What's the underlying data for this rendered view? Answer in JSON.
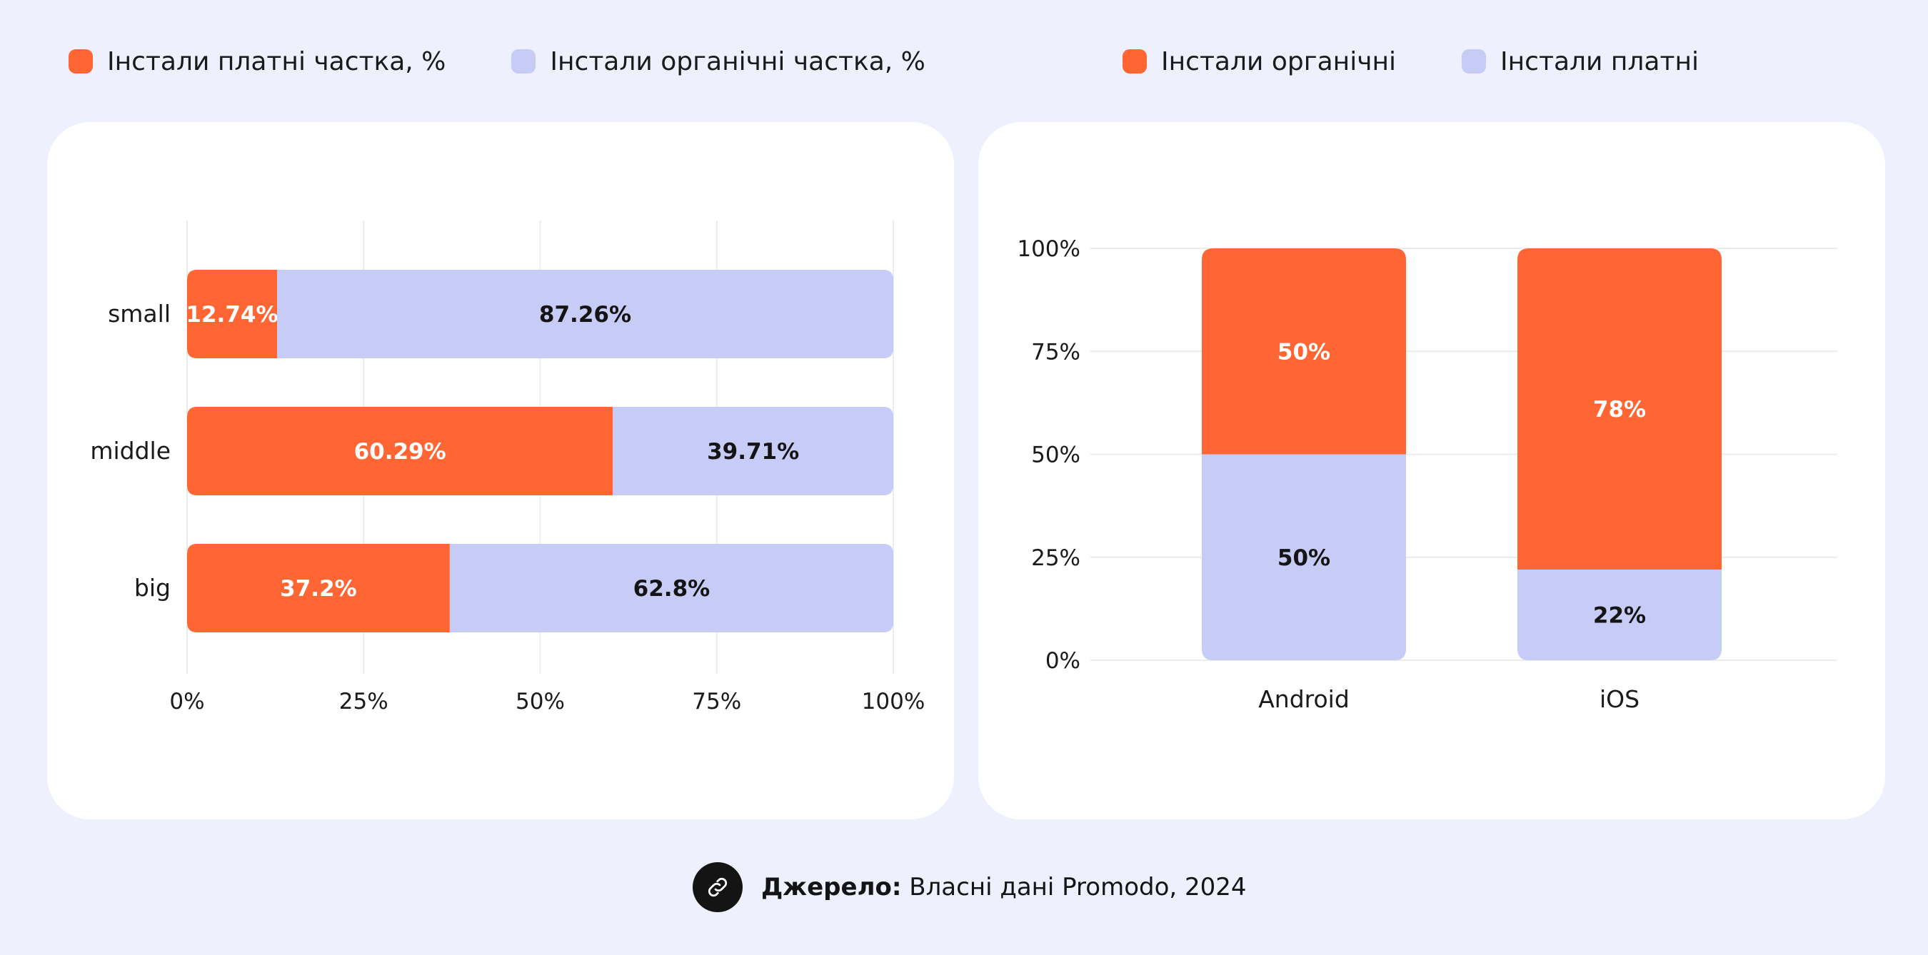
{
  "legends": {
    "left": [
      {
        "label": "Інстали платні частка, %",
        "color": "#FF6633"
      },
      {
        "label": "Інстали органічні частка, %",
        "color": "#C7CCF7"
      }
    ],
    "right": [
      {
        "label": "Інстали органічні",
        "color": "#FF6633"
      },
      {
        "label": "Інстали платні",
        "color": "#C7CCF7"
      }
    ]
  },
  "chart_data": [
    {
      "type": "bar",
      "orientation": "horizontal",
      "stacked": true,
      "categories": [
        "small",
        "middle",
        "big"
      ],
      "series": [
        {
          "name": "Інстали платні частка, %",
          "color": "#FF6633",
          "values": [
            12.74,
            60.29,
            37.2
          ],
          "labels": [
            "12.74%",
            "60.29%",
            "37.2%"
          ]
        },
        {
          "name": "Інстали органічні частка, %",
          "color": "#C7CCF7",
          "values": [
            87.26,
            39.71,
            62.8
          ],
          "labels": [
            "87.26%",
            "39.71%",
            "62.8%"
          ]
        }
      ],
      "xlim": [
        0,
        100
      ],
      "xticks": [
        "0%",
        "25%",
        "50%",
        "75%",
        "100%"
      ],
      "grid": "vertical"
    },
    {
      "type": "bar",
      "orientation": "vertical",
      "stacked": true,
      "categories": [
        "Android",
        "iOS"
      ],
      "series": [
        {
          "name": "Інстали платні",
          "color": "#C7CCF7",
          "values": [
            50,
            22
          ],
          "labels": [
            "50%",
            "22%"
          ]
        },
        {
          "name": "Інстали органічні",
          "color": "#FF6633",
          "values": [
            50,
            78
          ],
          "labels": [
            "50%",
            "78%"
          ]
        }
      ],
      "ylim": [
        0,
        100
      ],
      "yticks": [
        "0%",
        "25%",
        "50%",
        "75%",
        "100%"
      ],
      "grid": "horizontal"
    }
  ],
  "source": {
    "label": "Джерело:",
    "text": "Власні дані Promodo, 2024",
    "icon": "link-icon"
  }
}
